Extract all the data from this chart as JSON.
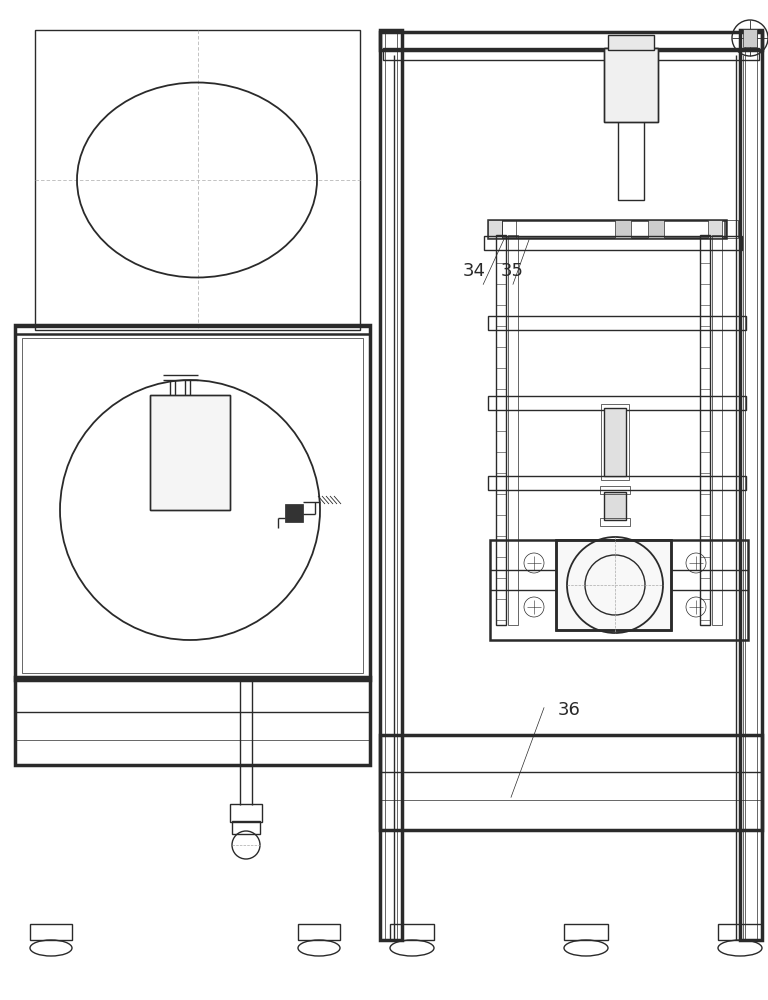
{
  "bg_color": "#ffffff",
  "lc": "#2a2a2a",
  "thin": 0.5,
  "med": 1.0,
  "thick": 1.8,
  "xthick": 2.5,
  "label_34": "34",
  "label_35": "35",
  "label_36": "36"
}
